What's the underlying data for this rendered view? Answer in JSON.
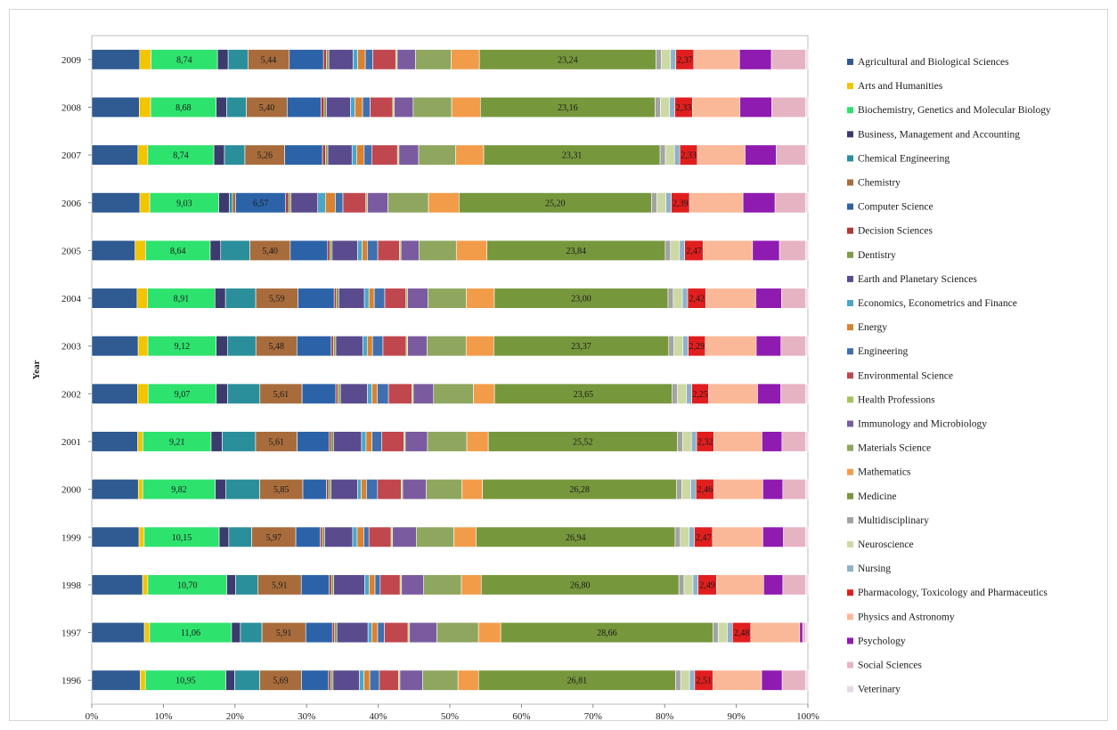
{
  "chart_data": {
    "type": "bar",
    "orientation": "horizontal",
    "stacking": "percent",
    "ylabel": "Year",
    "xlim": [
      0,
      100
    ],
    "x_ticks": [
      "0%",
      "10%",
      "20%",
      "30%",
      "40%",
      "50%",
      "60%",
      "70%",
      "80%",
      "90%",
      "100%"
    ],
    "legend_position": "right",
    "categories": [
      "2009",
      "2008",
      "2007",
      "2006",
      "2005",
      "2004",
      "2003",
      "2002",
      "2001",
      "2000",
      "1999",
      "1998",
      "1997",
      "1996"
    ],
    "series": [
      {
        "name": "Agricultural and Biological Sciences",
        "color": "#2f5a92",
        "values": [
          6.3,
          6.3,
          6.1,
          6.3,
          5.8,
          6.0,
          6.2,
          6.1,
          6.2,
          6.3,
          6.4,
          6.9,
          7.1,
          6.6
        ]
      },
      {
        "name": "Arts and Humanities",
        "color": "#f2c500",
        "values": [
          1.5,
          1.5,
          1.3,
          1.3,
          1.4,
          1.4,
          1.3,
          1.4,
          0.7,
          0.6,
          0.7,
          0.7,
          0.7,
          0.7
        ]
      },
      {
        "name": "Biochemistry, Genetics and Molecular Biology",
        "color": "#2ee26e",
        "values": [
          8.74,
          8.68,
          8.74,
          9.03,
          8.64,
          8.91,
          9.12,
          9.07,
          9.21,
          9.82,
          10.15,
          10.7,
          11.06,
          10.95
        ]
      },
      {
        "name": "Business, Management and Accounting",
        "color": "#3b3b6e",
        "values": [
          1.4,
          1.4,
          1.4,
          1.4,
          1.4,
          1.4,
          1.5,
          1.5,
          1.5,
          1.4,
          1.3,
          1.2,
          1.2,
          1.2
        ]
      },
      {
        "name": "Chemical Engineering",
        "color": "#2a8f9a",
        "values": [
          2.6,
          2.6,
          2.7,
          0.4,
          3.9,
          4.0,
          3.8,
          4.3,
          4.5,
          4.6,
          3.1,
          3.0,
          2.9,
          3.4
        ]
      },
      {
        "name": "Chemistry",
        "color": "#a86c3c",
        "values": [
          5.44,
          5.4,
          5.26,
          0.4,
          5.4,
          5.59,
          5.48,
          5.61,
          5.61,
          5.85,
          5.97,
          5.91,
          5.91,
          5.69
        ]
      },
      {
        "name": "Computer Science",
        "color": "#2c63a8",
        "values": [
          4.5,
          4.5,
          5.0,
          6.57,
          5.0,
          4.8,
          4.6,
          4.5,
          4.3,
          3.2,
          3.3,
          3.8,
          3.6,
          3.7
        ]
      },
      {
        "name": "Decision Sciences",
        "color": "#b03a3a",
        "values": [
          0.4,
          0.4,
          0.4,
          0.4,
          0.3,
          0.3,
          0.3,
          0.3,
          0.3,
          0.3,
          0.3,
          0.3,
          0.3,
          0.3
        ]
      },
      {
        "name": "Dentistry",
        "color": "#7d9c4a",
        "values": [
          0.3,
          0.3,
          0.3,
          0.3,
          0.3,
          0.3,
          0.3,
          0.3,
          0.3,
          0.3,
          0.3,
          0.3,
          0.3,
          0.3
        ]
      },
      {
        "name": "Earth and Planetary Sciences",
        "color": "#5a4b8e",
        "values": [
          3.2,
          3.2,
          3.2,
          3.5,
          3.4,
          3.4,
          3.6,
          3.6,
          3.8,
          3.6,
          3.8,
          4.2,
          4.2,
          3.6
        ]
      },
      {
        "name": "Economics, Econometrics and Finance",
        "color": "#4aa6c9",
        "values": [
          0.6,
          0.6,
          0.6,
          1.0,
          0.6,
          0.6,
          0.6,
          0.6,
          0.6,
          0.5,
          0.6,
          0.6,
          0.5,
          0.6
        ]
      },
      {
        "name": "Energy",
        "color": "#d9822f",
        "values": [
          1.0,
          1.0,
          1.0,
          1.3,
          0.7,
          0.7,
          0.7,
          0.7,
          0.8,
          0.7,
          0.9,
          0.8,
          0.8,
          0.8
        ]
      },
      {
        "name": "Engineering",
        "color": "#3f6fae",
        "values": [
          1.0,
          1.0,
          1.0,
          1.0,
          1.4,
          1.4,
          1.4,
          1.5,
          1.3,
          1.5,
          0.7,
          0.7,
          0.9,
          1.3
        ]
      },
      {
        "name": "Environmental Science",
        "color": "#c0474e",
        "values": [
          3.0,
          3.0,
          3.4,
          3.0,
          2.9,
          2.8,
          3.1,
          3.1,
          3.0,
          3.2,
          3.0,
          2.7,
          3.2,
          2.6
        ]
      },
      {
        "name": "Health Professions",
        "color": "#a8c35c",
        "values": [
          0.2,
          0.2,
          0.2,
          0.2,
          0.2,
          0.2,
          0.2,
          0.2,
          0.2,
          0.2,
          0.2,
          0.2,
          0.2,
          0.2
        ]
      },
      {
        "name": "Immunology and Microbiology",
        "color": "#7a5ba0",
        "values": [
          2.4,
          2.5,
          2.6,
          2.7,
          2.4,
          2.7,
          2.6,
          2.7,
          3.0,
          3.2,
          3.2,
          3.0,
          3.7,
          3.1
        ]
      },
      {
        "name": "Materials Science",
        "color": "#8ea65e",
        "values": [
          4.7,
          5.1,
          4.9,
          5.3,
          5.0,
          5.1,
          5.2,
          5.3,
          5.3,
          4.8,
          5.1,
          5.1,
          5.6,
          4.8
        ]
      },
      {
        "name": "Mathematics",
        "color": "#f29c4a",
        "values": [
          3.7,
          3.8,
          3.7,
          4.0,
          4.1,
          3.7,
          3.7,
          2.8,
          2.9,
          2.8,
          3.0,
          2.7,
          3.0,
          2.8
        ]
      },
      {
        "name": "Medicine",
        "color": "#77973d",
        "values": [
          23.24,
          23.16,
          23.31,
          25.2,
          23.84,
          23.0,
          23.37,
          23.65,
          25.52,
          26.28,
          26.94,
          26.8,
          28.66,
          26.81
        ]
      },
      {
        "name": "Multidisciplinary",
        "color": "#a3a3a3",
        "values": [
          0.7,
          0.7,
          0.7,
          0.7,
          0.7,
          0.7,
          0.7,
          0.7,
          0.7,
          0.7,
          0.7,
          0.7,
          0.7,
          0.7
        ]
      },
      {
        "name": "Neuroscience",
        "color": "#cdd9a4",
        "values": [
          1.2,
          1.2,
          1.2,
          1.2,
          1.2,
          1.2,
          1.2,
          1.2,
          1.2,
          1.2,
          1.2,
          1.2,
          1.2,
          1.2
        ]
      },
      {
        "name": "Nursing",
        "color": "#8fb1c9",
        "values": [
          0.7,
          0.7,
          0.7,
          0.7,
          0.7,
          0.7,
          0.7,
          0.7,
          0.7,
          0.7,
          0.7,
          0.7,
          0.7,
          0.7
        ]
      },
      {
        "name": "Pharmacology, Toxicology and Pharmaceutics",
        "color": "#e11e1e",
        "values": [
          2.37,
          2.33,
          2.33,
          2.39,
          2.47,
          2.42,
          2.29,
          2.25,
          2.32,
          2.46,
          2.47,
          2.49,
          2.48,
          2.51
        ]
      },
      {
        "name": "Physics and Astronomy",
        "color": "#fbb898",
        "values": [
          6.0,
          6.3,
          6.3,
          7.0,
          6.6,
          6.6,
          6.8,
          6.5,
          6.5,
          6.6,
          6.8,
          6.4,
          6.6,
          6.6
        ]
      },
      {
        "name": "Psychology",
        "color": "#8f1bb0",
        "values": [
          4.2,
          4.2,
          4.1,
          4.2,
          3.6,
          3.4,
          3.3,
          3.1,
          2.7,
          2.7,
          2.8,
          2.6,
          0.4,
          2.8
        ]
      },
      {
        "name": "Social Sciences",
        "color": "#e6b3c3",
        "values": [
          4.5,
          4.5,
          3.9,
          4.0,
          3.5,
          3.2,
          3.3,
          3.3,
          3.2,
          3.1,
          3.0,
          3.1,
          0.4,
          3.2
        ]
      },
      {
        "name": "Veterinary",
        "color": "#e8d9e6",
        "values": [
          0.3,
          0.3,
          0.3,
          0.3,
          0.3,
          0.3,
          0.3,
          0.3,
          0.3,
          0.3,
          0.3,
          0.3,
          0.3,
          0.3
        ]
      }
    ],
    "data_labels": {
      "Biochemistry, Genetics and Molecular Biology": [
        "8,74",
        "8,68",
        "8,74",
        "9,03",
        "8,64",
        "8,91",
        "9,12",
        "9,07",
        "9,21",
        "9,82",
        "10,15",
        "10,70",
        "11,06",
        "10,95"
      ],
      "Chemistry": [
        "5,44",
        "5,40",
        "5,26",
        "",
        "5,40",
        "5,59",
        "5,48",
        "5,61",
        "5,61",
        "5,85",
        "5,97",
        "5,91",
        "5,91",
        "5,69"
      ],
      "Computer Science": [
        "",
        "",
        "",
        "6,57",
        "",
        "",
        "",
        "",
        "",
        "",
        "",
        "",
        "",
        ""
      ],
      "Medicine": [
        "23,24",
        "23,16",
        "23,31",
        "25,20",
        "23,84",
        "23,00",
        "23,37",
        "23,65",
        "25,52",
        "26,28",
        "26,94",
        "26,80",
        "28,66",
        "26,81"
      ],
      "Pharmacology, Toxicology and Pharmaceutics": [
        "2,37",
        "2,33",
        "2,33",
        "2,39",
        "2,47",
        "2,42",
        "2,29",
        "2,25",
        "2,32",
        "2,46",
        "2,47",
        "2,49",
        "2,48",
        "2,51"
      ]
    }
  }
}
